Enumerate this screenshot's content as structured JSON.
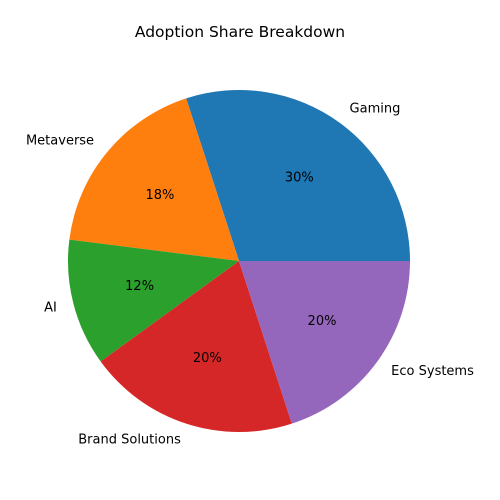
{
  "chart_data": {
    "type": "pie",
    "title": "Adoption Share Breakdown",
    "categories": [
      "Gaming",
      "Metaverse",
      "AI",
      "Brand Solutions",
      "Eco Systems"
    ],
    "values": [
      30,
      18,
      12,
      20,
      20
    ],
    "value_labels": [
      "30%",
      "18%",
      "12%",
      "20%",
      "20%"
    ],
    "colors": [
      "#1f77b4",
      "#ff7f0e",
      "#2ca02c",
      "#d62728",
      "#9467bd"
    ],
    "start_angle_deg": 0,
    "direction": "counterclockwise",
    "legend": "none"
  }
}
